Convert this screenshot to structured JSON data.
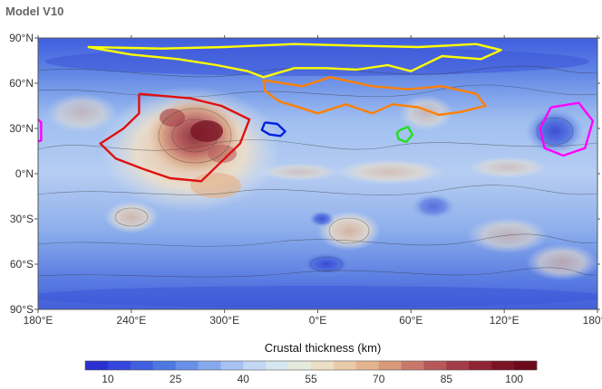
{
  "page": {
    "title": "Model V10"
  },
  "chart_data": {
    "type": "heatmap",
    "title": "",
    "projection": "equirectangular",
    "x_ticks": [
      {
        "lon": 180,
        "label": "180°E"
      },
      {
        "lon": 240,
        "label": "240°E"
      },
      {
        "lon": 300,
        "label": "300°E"
      },
      {
        "lon": 360,
        "label": "0°E"
      },
      {
        "lon": 420,
        "label": "60°E"
      },
      {
        "lon": 480,
        "label": "120°E"
      },
      {
        "lon": 540,
        "label": "180°E"
      }
    ],
    "y_ticks": [
      {
        "lat": 90,
        "label": "90°N"
      },
      {
        "lat": 60,
        "label": "60°N"
      },
      {
        "lat": 30,
        "label": "30°N"
      },
      {
        "lat": 0,
        "label": "0°N"
      },
      {
        "lat": -30,
        "label": "30°S"
      },
      {
        "lat": -60,
        "label": "60°S"
      },
      {
        "lat": -90,
        "label": "90°S"
      }
    ],
    "xlim": [
      180,
      540
    ],
    "ylim": [
      -90,
      90
    ],
    "colorbar": {
      "label": "Crustal thickness (km)",
      "range": [
        5,
        105
      ],
      "tick_values": [
        10,
        25,
        40,
        55,
        70,
        85,
        100
      ],
      "tick_labels": [
        "10",
        "25",
        "40",
        "55",
        "70",
        "85",
        "100"
      ],
      "colors": [
        "#2a2fcf",
        "#3446dc",
        "#3f5fe0",
        "#4d78e2",
        "#6890e8",
        "#86a8ee",
        "#a6c1f2",
        "#c2d7f3",
        "#d6e6ee",
        "#e5ebdc",
        "#eddfc5",
        "#eacba9",
        "#e4b48f",
        "#d89a7b",
        "#c8786a",
        "#b65858",
        "#a33c46",
        "#8f2434",
        "#7a1424",
        "#6a0a1a"
      ]
    },
    "regions": [
      {
        "name": "north-polar-outline",
        "color": "#ffff00",
        "outline": [
          [
            212,
            84
          ],
          [
            260,
            83
          ],
          [
            300,
            84
          ],
          [
            345,
            86
          ],
          [
            380,
            85
          ],
          [
            425,
            84
          ],
          [
            462,
            86
          ],
          [
            478,
            82
          ],
          [
            465,
            76
          ],
          [
            440,
            78
          ],
          [
            420,
            68
          ],
          [
            405,
            72
          ],
          [
            385,
            69
          ],
          [
            365,
            70
          ],
          [
            345,
            70
          ],
          [
            325,
            64
          ],
          [
            315,
            68
          ],
          [
            295,
            72
          ],
          [
            270,
            76
          ],
          [
            240,
            79
          ],
          [
            212,
            84
          ]
        ]
      },
      {
        "name": "orange-outline",
        "color": "#ff8000",
        "outline": [
          [
            325,
            62
          ],
          [
            350,
            58
          ],
          [
            368,
            64
          ],
          [
            395,
            58
          ],
          [
            418,
            56
          ],
          [
            440,
            58
          ],
          [
            462,
            53
          ],
          [
            468,
            45
          ],
          [
            452,
            41
          ],
          [
            438,
            39
          ],
          [
            425,
            44
          ],
          [
            408,
            46
          ],
          [
            395,
            40
          ],
          [
            378,
            46
          ],
          [
            360,
            40
          ],
          [
            348,
            44
          ],
          [
            335,
            48
          ],
          [
            326,
            55
          ],
          [
            325,
            62
          ]
        ]
      },
      {
        "name": "red-outline",
        "color": "#e01010",
        "outline": [
          [
            245,
            53
          ],
          [
            278,
            50
          ],
          [
            298,
            45
          ],
          [
            316,
            36
          ],
          [
            310,
            20
          ],
          [
            300,
            10
          ],
          [
            285,
            -5
          ],
          [
            265,
            -3
          ],
          [
            248,
            3
          ],
          [
            230,
            10
          ],
          [
            220,
            20
          ],
          [
            235,
            30
          ],
          [
            245,
            40
          ],
          [
            245,
            53
          ]
        ]
      },
      {
        "name": "blue-outline",
        "color": "#0020e0",
        "outline": [
          [
            326,
            34
          ],
          [
            334,
            33
          ],
          [
            339,
            28
          ],
          [
            336,
            25
          ],
          [
            329,
            26
          ],
          [
            324,
            29
          ],
          [
            326,
            34
          ]
        ]
      },
      {
        "name": "green-outline",
        "color": "#20e020",
        "outline": [
          [
            413,
            29
          ],
          [
            418,
            31
          ],
          [
            421,
            26
          ],
          [
            417,
            21
          ],
          [
            412,
            23
          ],
          [
            411,
            27
          ],
          [
            413,
            29
          ]
        ]
      },
      {
        "name": "magenta-outline",
        "color": "#ff00ff",
        "outline": [
          [
            510,
            44
          ],
          [
            528,
            47
          ],
          [
            537,
            35
          ],
          [
            532,
            17
          ],
          [
            518,
            12
          ],
          [
            506,
            17
          ],
          [
            503,
            30
          ],
          [
            510,
            44
          ]
        ]
      },
      {
        "name": "magenta-outline-west",
        "color": "#ff00ff",
        "outline": [
          [
            179,
            37
          ],
          [
            182,
            34
          ],
          [
            182,
            22
          ],
          [
            179,
            21
          ]
        ]
      }
    ]
  }
}
